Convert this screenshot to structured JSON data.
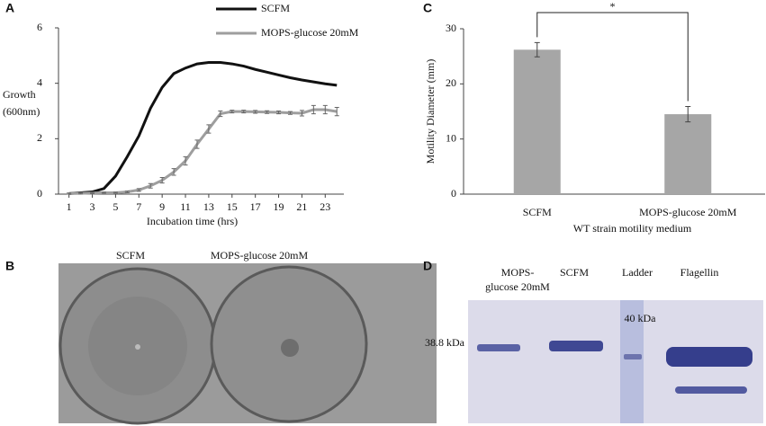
{
  "chart_data": [
    {
      "type": "line",
      "panel": "A",
      "x": [
        1,
        2,
        3,
        4,
        5,
        6,
        7,
        8,
        9,
        10,
        11,
        12,
        13,
        14,
        15,
        16,
        17,
        18,
        19,
        20,
        21,
        22,
        23,
        24
      ],
      "series": [
        {
          "name": "SCFM",
          "color": "#111111",
          "values": [
            0.02,
            0.05,
            0.08,
            0.2,
            0.65,
            1.35,
            2.1,
            3.1,
            3.85,
            4.35,
            4.55,
            4.7,
            4.75,
            4.75,
            4.7,
            4.62,
            4.5,
            4.4,
            4.3,
            4.2,
            4.12,
            4.05,
            3.98,
            3.93
          ]
        },
        {
          "name": "MOPS-glucose 20mM",
          "color": "#9e9e9e",
          "values": [
            0.02,
            0.03,
            0.04,
            0.05,
            0.05,
            0.08,
            0.15,
            0.3,
            0.5,
            0.8,
            1.2,
            1.8,
            2.35,
            2.9,
            2.98,
            2.98,
            2.97,
            2.96,
            2.95,
            2.93,
            2.92,
            3.05,
            3.05,
            2.98
          ],
          "errors": [
            0.02,
            0.02,
            0.02,
            0.02,
            0.02,
            0.03,
            0.05,
            0.08,
            0.1,
            0.12,
            0.15,
            0.15,
            0.15,
            0.1,
            0.05,
            0.05,
            0.05,
            0.05,
            0.05,
            0.05,
            0.1,
            0.15,
            0.15,
            0.15
          ]
        }
      ],
      "xlabel": "Incubation time (hrs)",
      "ylabel": [
        "Growth",
        "(600nm)"
      ],
      "xlim": [
        0.1,
        24.6
      ],
      "xticks": [
        1,
        3,
        5,
        7,
        9,
        11,
        13,
        15,
        17,
        19,
        21,
        23
      ],
      "ylim": [
        0,
        6
      ],
      "yticks": [
        0,
        2,
        4,
        6
      ]
    },
    {
      "type": "bar",
      "panel": "C",
      "categories": [
        "SCFM",
        "MOPS-glucose 20mM"
      ],
      "values": [
        26.2,
        14.5
      ],
      "errors": [
        1.3,
        1.4
      ],
      "color": "#a6a6a6",
      "xlabel": "WT strain motility medium",
      "ylabel": "Motility Diameter (mm)",
      "ylim": [
        0,
        30
      ],
      "yticks": [
        0,
        10,
        20,
        30
      ],
      "annotation": "*"
    }
  ],
  "photos": {
    "B": {
      "panel": "B",
      "labels": [
        "SCFM",
        "MOPS-glucose 20mM"
      ]
    },
    "D": {
      "panel": "D",
      "lanes": [
        [
          "MOPS-",
          "glucose 20mM"
        ],
        [
          "SCFM"
        ],
        [
          "Ladder"
        ],
        [
          "Flagellin"
        ]
      ],
      "ladder_mark": "40 kDa",
      "band_size": "38.8  kDa"
    }
  }
}
